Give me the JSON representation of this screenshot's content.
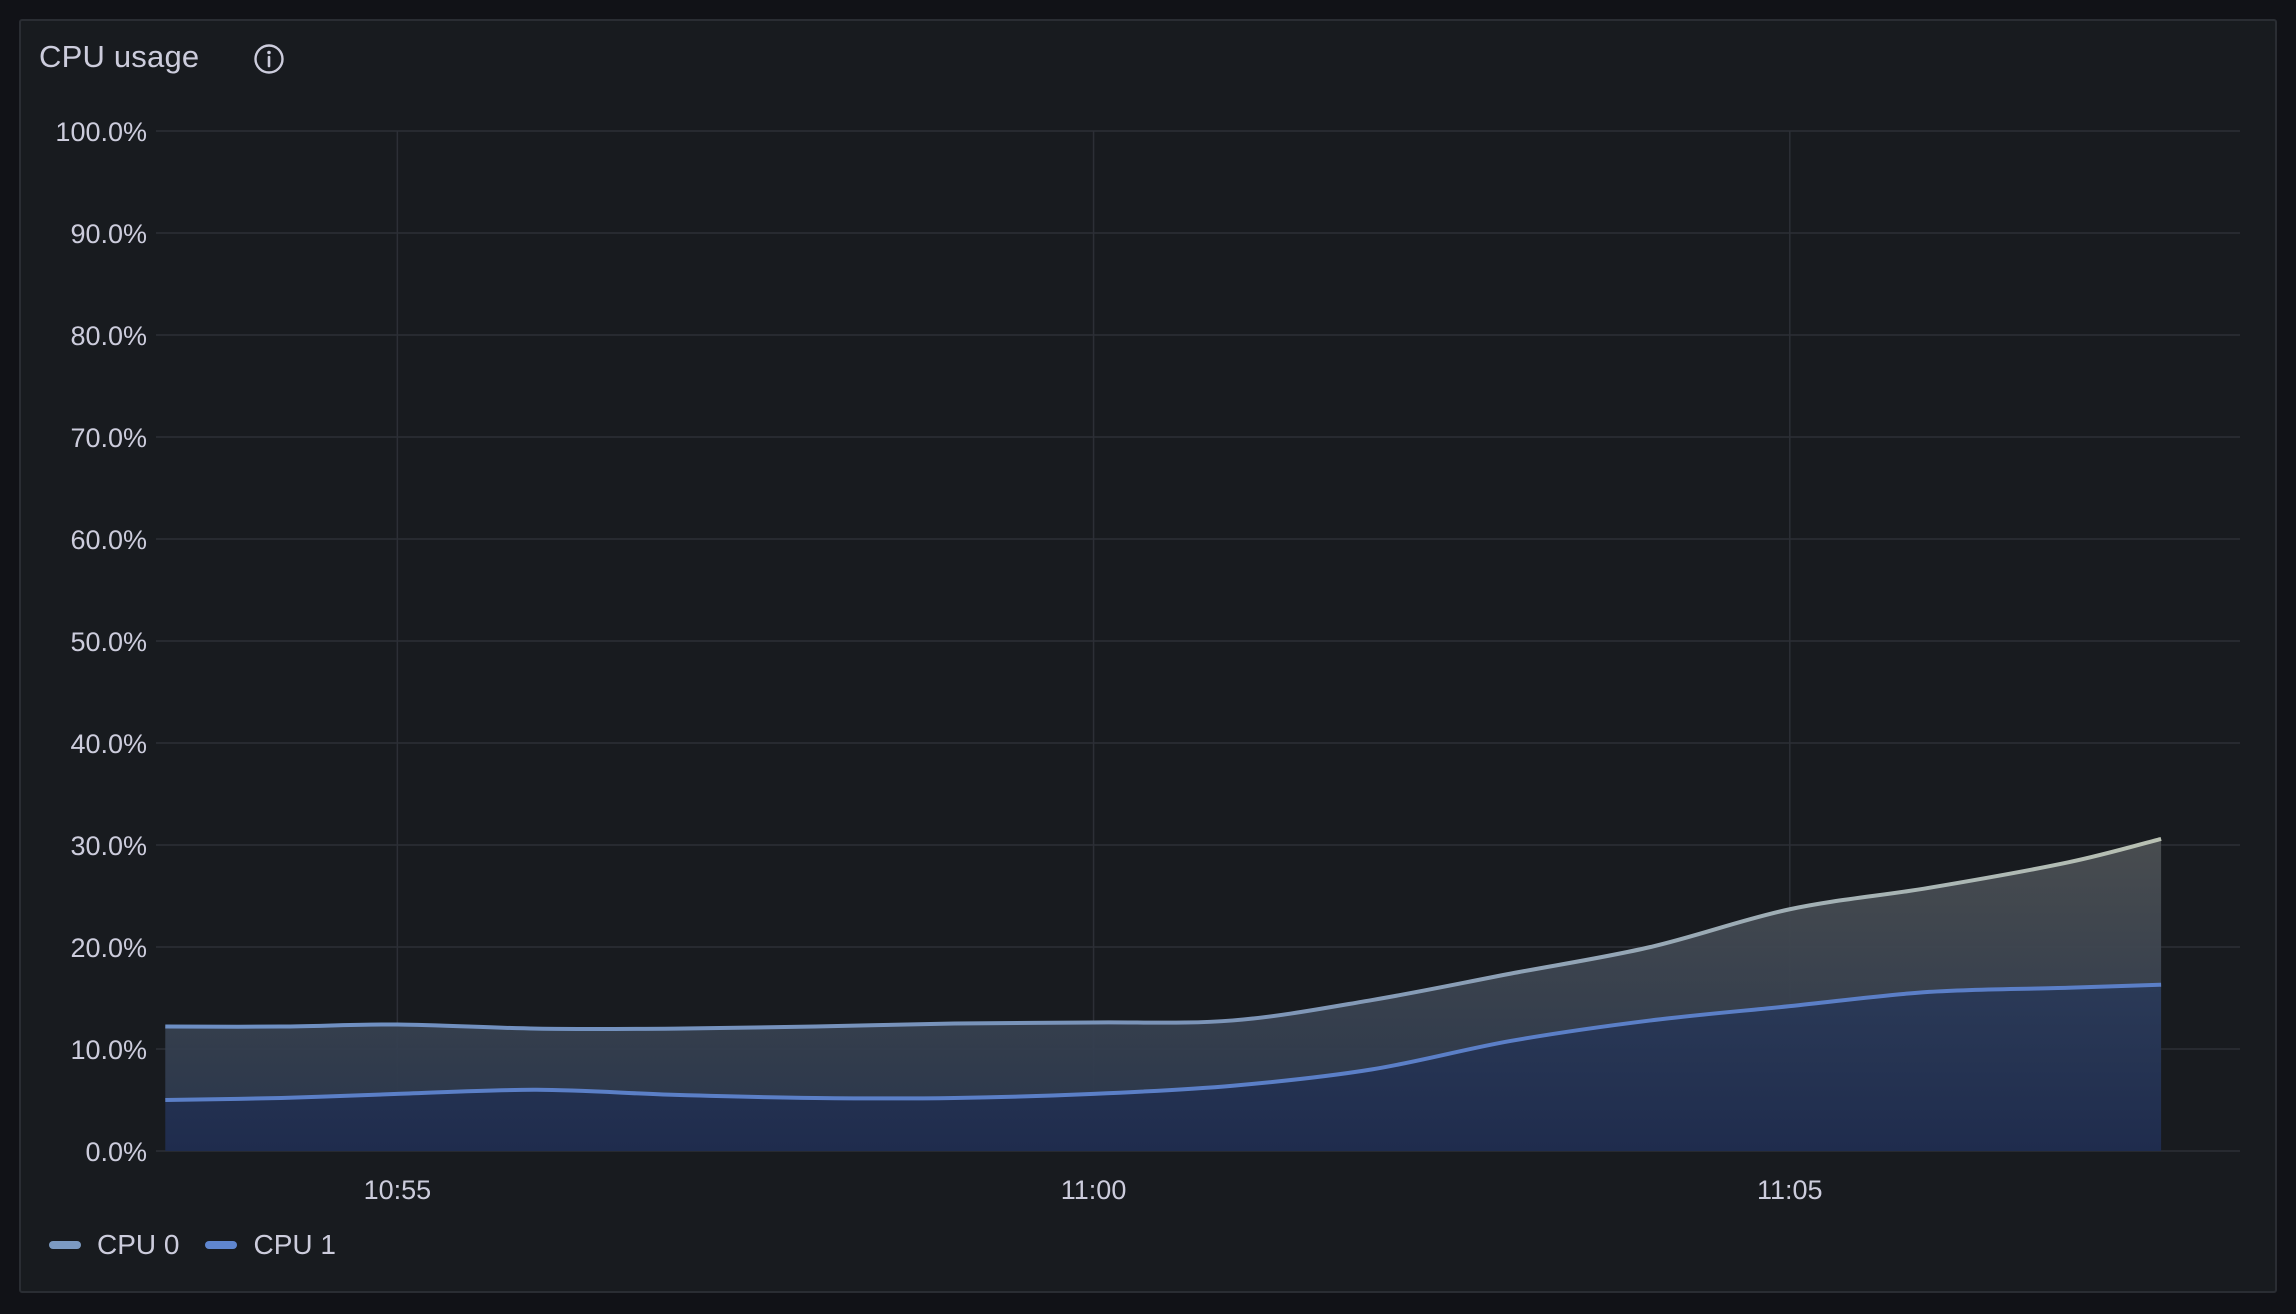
{
  "panel": {
    "title": "CPU usage",
    "info_icon": "info-circle-icon"
  },
  "colors": {
    "background": "#111217",
    "panel": "#181b1f",
    "grid": "#2c2f36",
    "text": "#ccccdc",
    "cpu0": "#7a93b8",
    "cpu1": "#5b7fc7"
  },
  "legend": [
    {
      "label": "CPU 0",
      "color": "#7c9ac2"
    },
    {
      "label": "CPU 1",
      "color": "#5f86cf"
    }
  ],
  "chart_data": {
    "type": "area",
    "stacked": true,
    "x_ticks": [
      "10:55",
      "11:00",
      "11:05"
    ],
    "y_ticks": [
      "0.0%",
      "10.0%",
      "20.0%",
      "30.0%",
      "40.0%",
      "50.0%",
      "60.0%",
      "70.0%",
      "80.0%",
      "90.0%",
      "100.0%"
    ],
    "ylim": [
      0,
      100
    ],
    "xlim_minutes": [
      10.48,
      18.3
    ],
    "x_tick_minutes": [
      10.55,
      11.0,
      11.05
    ],
    "grid": true,
    "legend_position": "bottom-left",
    "x": [
      "10:53:20",
      "10:54:10",
      "10:55:00",
      "10:56:00",
      "10:57:00",
      "10:58:00",
      "10:59:00",
      "11:00:00",
      "11:01:00",
      "11:02:00",
      "11:03:00",
      "11:04:00",
      "11:05:00",
      "11:06:00",
      "11:07:00",
      "11:07:40"
    ],
    "series": [
      {
        "name": "CPU 1",
        "values": [
          5.0,
          5.2,
          5.6,
          6.0,
          5.5,
          5.2,
          5.2,
          5.6,
          6.4,
          8.0,
          10.8,
          12.8,
          14.2,
          15.6,
          16.0,
          16.3
        ]
      },
      {
        "name": "CPU 0",
        "values": [
          7.2,
          7.0,
          6.8,
          6.0,
          6.5,
          7.0,
          7.3,
          7.0,
          6.4,
          6.8,
          6.6,
          7.2,
          9.5,
          10.2,
          12.3,
          14.3
        ]
      }
    ]
  }
}
